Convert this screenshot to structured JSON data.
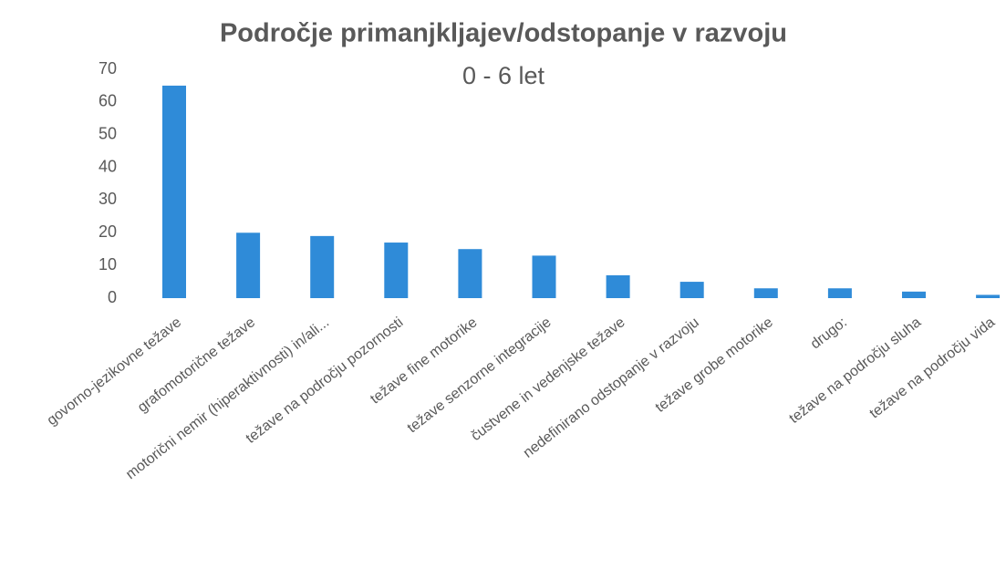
{
  "chart_data": {
    "type": "bar",
    "title": "Področje primanjkljajev/odstopanje v razvoju",
    "subtitle": "0 - 6 let",
    "categories": [
      "govorno-jezikovne težave",
      "grafomotorične težave",
      "motorični nemir (hiperaktivnosti) in/ali...",
      "težave na področju pozornosti",
      "težave fine motorike",
      "težave senzorne integracije",
      "čustvene in vedenjske težave",
      "nedefinirano odstopanje v razvoju",
      "težave grobe motorike",
      "drugo:",
      "težave na področju sluha",
      "težave na področju vida"
    ],
    "values": [
      65,
      20,
      19,
      17,
      15,
      13,
      7,
      5,
      3,
      3,
      2,
      1
    ],
    "color": "#2f8bd8",
    "ylim": [
      0,
      70
    ],
    "yticks": [
      0,
      10,
      20,
      30,
      40,
      50,
      60,
      70
    ],
    "grid": false
  }
}
